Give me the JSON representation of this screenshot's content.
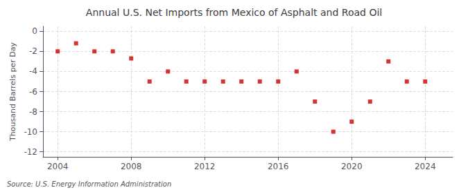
{
  "chart_data": {
    "type": "scatter",
    "title": "Annual U.S. Net Imports from Mexico of Asphalt and Road Oil",
    "ylabel": "Thousand Barrels per Day",
    "source": "Source: U.S. Energy Information Administration",
    "x": [
      2004,
      2005,
      2006,
      2007,
      2008,
      2009,
      2010,
      2011,
      2012,
      2013,
      2014,
      2015,
      2016,
      2017,
      2018,
      2019,
      2020,
      2021,
      2022,
      2023,
      2024
    ],
    "values": [
      -2.0,
      -1.2,
      -2.0,
      -2.0,
      -2.7,
      -5.0,
      -4.0,
      -5.0,
      -5.0,
      -5.0,
      -5.0,
      -5.0,
      -5.0,
      -4.0,
      -7.0,
      -10.0,
      -9.0,
      -7.0,
      -3.0,
      -5.0,
      -5.0
    ],
    "color": "#cc0000",
    "marker": "square",
    "xlim": [
      2003.2,
      2025.5
    ],
    "xticks": [
      2004,
      2008,
      2012,
      2016,
      2020,
      2024
    ],
    "ylim": [
      -12.5,
      0.5
    ],
    "yticks": [
      0,
      -2,
      -4,
      -6,
      -8,
      -10,
      -12
    ],
    "grid": true
  }
}
